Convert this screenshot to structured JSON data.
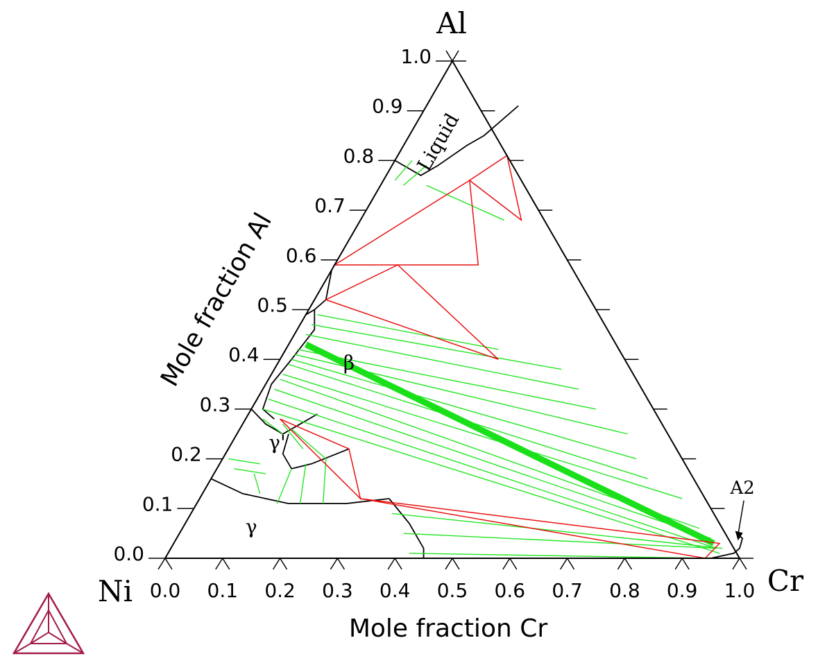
{
  "chart_data": {
    "type": "ternary",
    "corners": {
      "top": "Al",
      "left": "Ni",
      "right": "Cr"
    },
    "xlabel": "Mole fraction Cr",
    "ylabel": "Mole fraction Al",
    "bottom_ticks": [
      "0.0",
      "0.1",
      "0.2",
      "0.3",
      "0.4",
      "0.5",
      "0.6",
      "0.7",
      "0.8",
      "0.9",
      "1.0"
    ],
    "left_ticks": [
      "0.0",
      "0.1",
      "0.2",
      "0.3",
      "0.4",
      "0.5",
      "0.6",
      "0.7",
      "0.8",
      "0.9",
      "1.0"
    ],
    "tick_values": [
      0,
      0.1,
      0.2,
      0.3,
      0.4,
      0.5,
      0.6,
      0.7,
      0.8,
      0.9,
      1.0
    ],
    "region_labels": [
      {
        "text": "Liquid",
        "cr": 0.07,
        "al": 0.83
      },
      {
        "text": "β",
        "cr": 0.13,
        "al": 0.38
      },
      {
        "text": "γ'",
        "cr": 0.085,
        "al": 0.22
      },
      {
        "text": "γ",
        "cr": 0.125,
        "al": 0.05
      },
      {
        "text": "A2",
        "cr": 0.94,
        "al": 0.13
      }
    ],
    "phase_boundaries": [
      {
        "name": "liquid-boundary",
        "points": [
          [
            0.0,
            0.8
          ],
          [
            0.06,
            0.77
          ],
          [
            0.08,
            0.79
          ],
          [
            0.11,
            0.83
          ],
          [
            0.13,
            0.85
          ],
          [
            0.16,
            0.91
          ]
        ]
      },
      {
        "name": "beta-left-boundary",
        "points": [
          [
            0.0,
            0.58
          ],
          [
            0.02,
            0.52
          ],
          [
            0.01,
            0.5
          ],
          [
            0.0,
            0.49
          ]
        ]
      },
      {
        "name": "beta-gamma-prime-boundary",
        "points": [
          [
            0.0,
            0.3
          ],
          [
            0.04,
            0.27
          ],
          [
            0.08,
            0.25
          ],
          [
            0.12,
            0.29
          ]
        ]
      },
      {
        "name": "beta-right-boundary",
        "points": [
          [
            0.01,
            0.5
          ],
          [
            0.03,
            0.46
          ],
          [
            0.02,
            0.4
          ],
          [
            0.01,
            0.35
          ],
          [
            0.02,
            0.3
          ],
          [
            0.05,
            0.28
          ]
        ]
      },
      {
        "name": "gamma-prime-lower-boundary",
        "points": [
          [
            0.09,
            0.25
          ],
          [
            0.1,
            0.21
          ],
          [
            0.13,
            0.18
          ],
          [
            0.16,
            0.19
          ],
          [
            0.21,
            0.22
          ]
        ]
      },
      {
        "name": "gamma-upper-boundary",
        "points": [
          [
            0.0,
            0.16
          ],
          [
            0.07,
            0.13
          ],
          [
            0.16,
            0.11
          ],
          [
            0.26,
            0.11
          ],
          [
            0.33,
            0.12
          ]
        ]
      },
      {
        "name": "gamma-right-boundary",
        "points": [
          [
            0.33,
            0.12
          ],
          [
            0.39,
            0.07
          ],
          [
            0.44,
            0.02
          ],
          [
            0.45,
            0.0
          ]
        ]
      },
      {
        "name": "a2-boundary",
        "points": [
          [
            0.45,
            0.0
          ],
          [
            0.7,
            0.0
          ],
          [
            0.95,
            0.0
          ],
          [
            0.985,
            0.01
          ],
          [
            0.99,
            0.02
          ],
          [
            0.985,
            0.04
          ],
          [
            0.97,
            0.05
          ]
        ]
      }
    ],
    "tie_triangles": [
      [
        [
          0.0,
          0.59
        ],
        [
          0.25,
          0.59
        ],
        [
          0.15,
          0.76
        ]
      ],
      [
        [
          0.15,
          0.76
        ],
        [
          0.28,
          0.68
        ],
        [
          0.19,
          0.81
        ]
      ],
      [
        [
          0.02,
          0.52
        ],
        [
          0.11,
          0.59
        ],
        [
          0.38,
          0.4
        ]
      ],
      [
        [
          0.06,
          0.28
        ],
        [
          0.21,
          0.22
        ],
        [
          0.28,
          0.12
        ]
      ],
      [
        [
          0.28,
          0.12
        ],
        [
          0.94,
          0.0
        ],
        [
          0.95,
          0.03
        ]
      ]
    ],
    "tie_lines_green": [
      [
        [
          0.02,
          0.76
        ],
        [
          0.03,
          0.8
        ]
      ],
      [
        [
          0.04,
          0.75
        ],
        [
          0.06,
          0.79
        ]
      ],
      [
        [
          0.08,
          0.75
        ],
        [
          0.25,
          0.68
        ]
      ],
      [
        [
          0.02,
          0.49
        ],
        [
          0.37,
          0.42
        ]
      ],
      [
        [
          0.02,
          0.47
        ],
        [
          0.5,
          0.38
        ]
      ],
      [
        [
          0.02,
          0.45
        ],
        [
          0.55,
          0.34
        ]
      ],
      [
        [
          0.02,
          0.42
        ],
        [
          0.6,
          0.3
        ]
      ],
      [
        [
          0.02,
          0.41
        ],
        [
          0.68,
          0.25
        ]
      ],
      [
        [
          0.02,
          0.4
        ],
        [
          0.72,
          0.2
        ]
      ],
      [
        [
          0.02,
          0.39
        ],
        [
          0.76,
          0.16
        ]
      ],
      [
        [
          0.02,
          0.37
        ],
        [
          0.84,
          0.12
        ]
      ],
      [
        [
          0.02,
          0.36
        ],
        [
          0.9,
          0.06
        ]
      ],
      [
        [
          0.02,
          0.34
        ],
        [
          0.93,
          0.04
        ]
      ],
      [
        [
          0.02,
          0.32
        ],
        [
          0.95,
          0.02
        ]
      ],
      [
        [
          0.02,
          0.3
        ],
        [
          0.96,
          0.01
        ]
      ],
      [
        [
          0.03,
          0.28
        ],
        [
          0.08,
          0.25
        ]
      ],
      [
        [
          0.07,
          0.27
        ],
        [
          0.13,
          0.22
        ]
      ],
      [
        [
          0.09,
          0.26
        ],
        [
          0.18,
          0.2
        ]
      ],
      [
        [
          0.01,
          0.2
        ],
        [
          0.07,
          0.19
        ]
      ],
      [
        [
          0.03,
          0.18
        ],
        [
          0.09,
          0.17
        ]
      ],
      [
        [
          0.07,
          0.17
        ],
        [
          0.1,
          0.13
        ]
      ],
      [
        [
          0.13,
          0.18
        ],
        [
          0.14,
          0.11
        ]
      ],
      [
        [
          0.15,
          0.19
        ],
        [
          0.18,
          0.11
        ]
      ],
      [
        [
          0.18,
          0.2
        ],
        [
          0.22,
          0.11
        ]
      ],
      [
        [
          0.42,
          0.01
        ],
        [
          0.94,
          0.0
        ]
      ],
      [
        [
          0.39,
          0.05
        ],
        [
          0.95,
          0.02
        ]
      ],
      [
        [
          0.35,
          0.09
        ],
        [
          0.96,
          0.02
        ]
      ]
    ],
    "thick_tie_band": [
      [
        0.03,
        0.43
      ],
      [
        0.94,
        0.03
      ]
    ]
  }
}
